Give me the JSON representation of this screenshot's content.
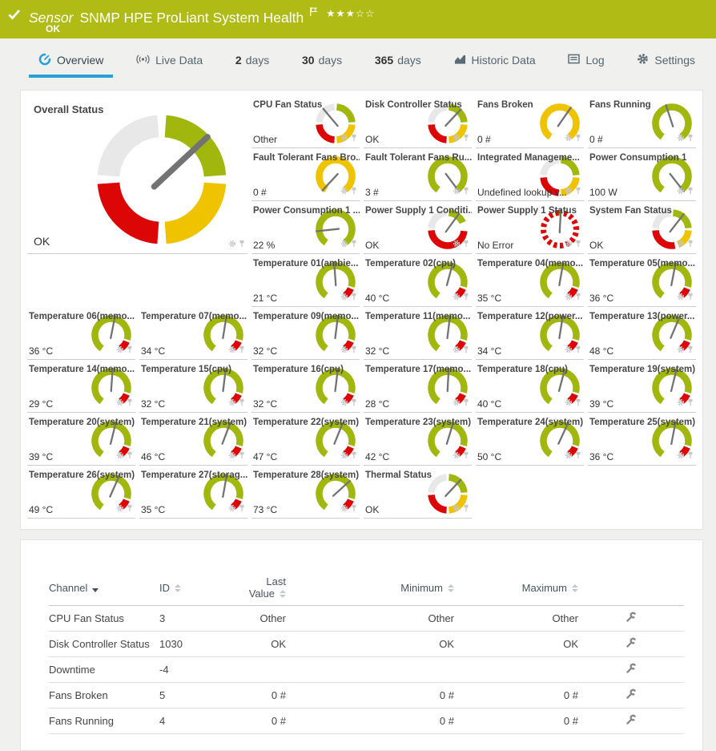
{
  "banner": {
    "type_label": "Sensor",
    "title": "SNMP HPE ProLiant System Health",
    "status": "OK",
    "rating_filled": 3,
    "rating_total": 5
  },
  "icons": {
    "star_filled": "★",
    "star_empty": "☆"
  },
  "colors": {
    "banner_green": "#b0bb16",
    "tab_blue": "#2aa0d5",
    "gauge_green": "#a2b70e",
    "gauge_yellow": "#f0c300",
    "gauge_red": "#dd0606",
    "gauge_gray": "#e8e8e8",
    "needle": "#737373",
    "icon_gray": "#c7c7c7",
    "tab_icon_gray": "#5b6b75",
    "wrench_gray": "#878787"
  },
  "tabs": [
    {
      "label": "Overview",
      "icon": "gauge-icon",
      "active": true
    },
    {
      "label": "Live Data",
      "icon": "live-icon",
      "active": false
    },
    {
      "num": "2",
      "label": "days",
      "active": false
    },
    {
      "num": "30",
      "label": "days",
      "active": false
    },
    {
      "num": "365",
      "label": "days",
      "active": false
    },
    {
      "label": "Historic Data",
      "icon": "chart-icon",
      "active": false
    },
    {
      "label": "Log",
      "icon": "log-icon",
      "active": false
    },
    {
      "label": "Settings",
      "icon": "gear-icon",
      "active": false
    }
  ],
  "gauges": {
    "overall": {
      "label": "Overall Status",
      "value": "OK",
      "kind": "status4",
      "needle": 47
    },
    "tiles": [
      {
        "label": "CPU Fan Status",
        "value": "Other",
        "kind": "status4",
        "needle": -40
      },
      {
        "label": "Disk Controller Status",
        "value": "OK",
        "kind": "status4",
        "needle": 43
      },
      {
        "label": "Fans Broken",
        "value": "0 #",
        "kind": "arcY",
        "needle": 35
      },
      {
        "label": "Fans Running",
        "value": "0 #",
        "kind": "arcG",
        "needle": -18
      },
      {
        "label": "Fault Tolerant Fans Bro...",
        "value": "0 #",
        "kind": "arcY",
        "needle": -137
      },
      {
        "label": "Fault Tolerant Fans Ru...",
        "value": "3 #",
        "kind": "arcG",
        "needle": 143
      },
      {
        "label": "Integrated Manageme...",
        "value": "Undefined lookup v...",
        "kind": "status4",
        "needle": null
      },
      {
        "label": "Power Consumption 1",
        "value": "100 W",
        "kind": "arcG",
        "needle": 142
      },
      {
        "label": "Power Consumption 1 ...",
        "value": "22 %",
        "kind": "arcG",
        "needle": -96
      },
      {
        "label": "Power Supply 1 Conditi...",
        "value": "OK",
        "kind": "psu1",
        "needle": 36
      },
      {
        "label": "Power Supply 1 Status",
        "value": "No Error",
        "kind": "dotted",
        "needle": 3
      },
      {
        "label": "System Fan Status",
        "value": "OK",
        "kind": "sysfan",
        "needle": 38
      },
      {
        "label": "Temperature 01(ambie...",
        "value": "21 °C",
        "kind": "temp",
        "needle": -4
      },
      {
        "label": "Temperature 02(cpu)",
        "value": "40 °C",
        "kind": "temp",
        "needle": 15
      },
      {
        "label": "Temperature 04(memo...",
        "value": "35 °C",
        "kind": "temp",
        "needle": 10
      },
      {
        "label": "Temperature 05(memo...",
        "value": "36 °C",
        "kind": "temp",
        "needle": 11
      },
      {
        "label": "Temperature 06(memo...",
        "value": "36 °C",
        "kind": "temp",
        "needle": 11
      },
      {
        "label": "Temperature 07(memo...",
        "value": "34 °C",
        "kind": "temp",
        "needle": 9
      },
      {
        "label": "Temperature 09(memo...",
        "value": "32 °C",
        "kind": "temp",
        "needle": 7
      },
      {
        "label": "Temperature 11(memo...",
        "value": "32 °C",
        "kind": "temp",
        "needle": 7
      },
      {
        "label": "Temperature 12(power...",
        "value": "34 °C",
        "kind": "temp",
        "needle": 9
      },
      {
        "label": "Temperature 13(power...",
        "value": "48 °C",
        "kind": "temp",
        "needle": 23
      },
      {
        "label": "Temperature 14(memo...",
        "value": "29 °C",
        "kind": "temp",
        "needle": 4
      },
      {
        "label": "Temperature 15(cpu)",
        "value": "32 °C",
        "kind": "temp",
        "needle": 7
      },
      {
        "label": "Temperature 16(cpu)",
        "value": "32 °C",
        "kind": "temp",
        "needle": 7
      },
      {
        "label": "Temperature 17(memo...",
        "value": "28 °C",
        "kind": "temp",
        "needle": 3
      },
      {
        "label": "Temperature 18(cpu)",
        "value": "40 °C",
        "kind": "temp",
        "needle": 15
      },
      {
        "label": "Temperature 19(system)",
        "value": "39 °C",
        "kind": "temp",
        "needle": 14
      },
      {
        "label": "Temperature 20(system)",
        "value": "39 °C",
        "kind": "temp",
        "needle": 14
      },
      {
        "label": "Temperature 21(system)",
        "value": "46 °C",
        "kind": "temp",
        "needle": 21
      },
      {
        "label": "Temperature 22(system)",
        "value": "47 °C",
        "kind": "temp",
        "needle": 22
      },
      {
        "label": "Temperature 23(system)",
        "value": "42 °C",
        "kind": "temp",
        "needle": 17
      },
      {
        "label": "Temperature 24(system)",
        "value": "50 °C",
        "kind": "temp",
        "needle": 25
      },
      {
        "label": "Temperature 25(system)",
        "value": "36 °C",
        "kind": "temp",
        "needle": 11
      },
      {
        "label": "Temperature 26(system)",
        "value": "49 °C",
        "kind": "temp",
        "needle": 24
      },
      {
        "label": "Temperature 27(storag...",
        "value": "35 °C",
        "kind": "temp",
        "needle": 10
      },
      {
        "label": "Temperature 28(system)",
        "value": "73 °C",
        "kind": "temp",
        "needle": 48
      },
      {
        "label": "Thermal Status",
        "value": "OK",
        "kind": "status4",
        "needle": 43
      }
    ]
  },
  "table": {
    "headers": [
      {
        "label": "Channel",
        "sort": "desc"
      },
      {
        "label": "ID",
        "sort": "both"
      },
      {
        "label": "Last Value",
        "sort": "both"
      },
      {
        "label": "Minimum",
        "sort": "both"
      },
      {
        "label": "Maximum",
        "sort": "both"
      }
    ],
    "rows": [
      [
        "CPU Fan Status",
        "3",
        "Other",
        "Other",
        "Other"
      ],
      [
        "Disk Controller Status",
        "1030",
        "OK",
        "OK",
        "OK"
      ],
      [
        "Downtime",
        "-4",
        "",
        "",
        ""
      ],
      [
        "Fans Broken",
        "5",
        "0 #",
        "0 #",
        "0 #"
      ],
      [
        "Fans Running",
        "4",
        "0 #",
        "0 #",
        "0 #"
      ]
    ]
  }
}
